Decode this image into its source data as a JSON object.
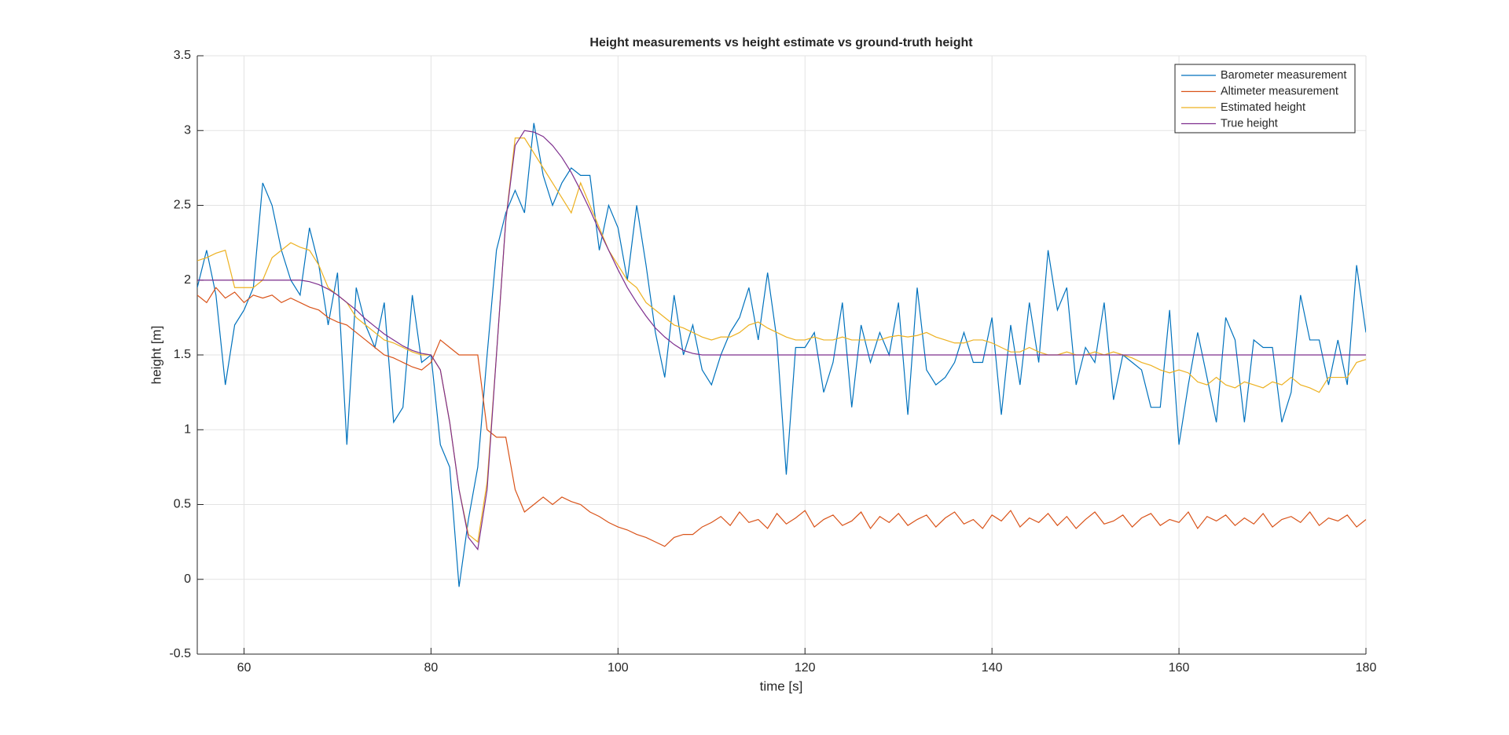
{
  "chart_data": {
    "type": "line",
    "title": "Height measurements vs height estimate vs ground-truth height",
    "xlabel": "time [s]",
    "ylabel": "height [m]",
    "xlim": [
      55,
      180
    ],
    "xticks": [
      60,
      80,
      100,
      120,
      140,
      160,
      180
    ],
    "ylim": [
      -0.5,
      3.5
    ],
    "yticks": [
      -0.5,
      0,
      0.5,
      1,
      1.5,
      2,
      2.5,
      3,
      3.5
    ],
    "grid": true,
    "legend": "northeast",
    "x": [
      55,
      56,
      57,
      58,
      59,
      60,
      61,
      62,
      63,
      64,
      65,
      66,
      67,
      68,
      69,
      70,
      71,
      72,
      73,
      74,
      75,
      76,
      77,
      78,
      79,
      80,
      81,
      82,
      83,
      84,
      85,
      86,
      87,
      88,
      89,
      90,
      91,
      92,
      93,
      94,
      95,
      96,
      97,
      98,
      99,
      100,
      101,
      102,
      103,
      104,
      105,
      106,
      107,
      108,
      109,
      110,
      111,
      112,
      113,
      114,
      115,
      116,
      117,
      118,
      119,
      120,
      121,
      122,
      123,
      124,
      125,
      126,
      127,
      128,
      129,
      130,
      131,
      132,
      133,
      134,
      135,
      136,
      137,
      138,
      139,
      140,
      141,
      142,
      143,
      144,
      145,
      146,
      147,
      148,
      149,
      150,
      151,
      152,
      153,
      154,
      155,
      156,
      157,
      158,
      159,
      160,
      161,
      162,
      163,
      164,
      165,
      166,
      167,
      168,
      169,
      170,
      171,
      172,
      173,
      174,
      175,
      176,
      177,
      178,
      179,
      180
    ],
    "series": [
      {
        "name": "Barometer measurement",
        "color": "#0072BD",
        "values": [
          1.95,
          2.2,
          1.9,
          1.3,
          1.7,
          1.8,
          1.95,
          2.65,
          2.5,
          2.2,
          2.0,
          1.9,
          2.35,
          2.1,
          1.7,
          2.05,
          0.9,
          1.95,
          1.7,
          1.55,
          1.85,
          1.05,
          1.15,
          1.9,
          1.45,
          1.5,
          0.9,
          0.75,
          -0.05,
          0.4,
          0.75,
          1.5,
          2.2,
          2.45,
          2.6,
          2.45,
          3.05,
          2.7,
          2.5,
          2.65,
          2.75,
          2.7,
          2.7,
          2.2,
          2.5,
          2.35,
          2.0,
          2.5,
          2.1,
          1.65,
          1.35,
          1.9,
          1.5,
          1.7,
          1.4,
          1.3,
          1.5,
          1.65,
          1.75,
          1.95,
          1.6,
          2.05,
          1.6,
          0.7,
          1.55,
          1.55,
          1.65,
          1.25,
          1.45,
          1.85,
          1.15,
          1.7,
          1.45,
          1.65,
          1.5,
          1.85,
          1.1,
          1.95,
          1.4,
          1.3,
          1.35,
          1.45,
          1.65,
          1.45,
          1.45,
          1.75,
          1.1,
          1.7,
          1.3,
          1.85,
          1.45,
          2.2,
          1.8,
          1.95,
          1.3,
          1.55,
          1.45,
          1.85,
          1.2,
          1.5,
          1.45,
          1.4,
          1.15,
          1.15,
          1.8,
          0.9,
          1.3,
          1.65,
          1.35,
          1.05,
          1.75,
          1.6,
          1.05,
          1.6,
          1.55,
          1.55,
          1.05,
          1.25,
          1.9,
          1.6,
          1.6,
          1.3,
          1.6,
          1.3,
          2.1,
          1.65
        ]
      },
      {
        "name": "Altimeter measurement",
        "color": "#D95319",
        "values": [
          1.9,
          1.85,
          1.95,
          1.88,
          1.92,
          1.85,
          1.9,
          1.88,
          1.9,
          1.85,
          1.88,
          1.85,
          1.82,
          1.8,
          1.75,
          1.72,
          1.7,
          1.65,
          1.6,
          1.55,
          1.5,
          1.48,
          1.45,
          1.42,
          1.4,
          1.45,
          1.6,
          1.55,
          1.5,
          1.5,
          1.5,
          1.0,
          0.95,
          0.95,
          0.6,
          0.45,
          0.5,
          0.55,
          0.5,
          0.55,
          0.52,
          0.5,
          0.45,
          0.42,
          0.38,
          0.35,
          0.33,
          0.3,
          0.28,
          0.25,
          0.22,
          0.28,
          0.3,
          0.3,
          0.35,
          0.38,
          0.42,
          0.36,
          0.45,
          0.38,
          0.4,
          0.34,
          0.44,
          0.37,
          0.41,
          0.46,
          0.35,
          0.4,
          0.43,
          0.36,
          0.39,
          0.45,
          0.34,
          0.42,
          0.38,
          0.44,
          0.36,
          0.4,
          0.43,
          0.35,
          0.41,
          0.45,
          0.37,
          0.4,
          0.34,
          0.43,
          0.39,
          0.46,
          0.35,
          0.41,
          0.38,
          0.44,
          0.36,
          0.42,
          0.34,
          0.4,
          0.45,
          0.37,
          0.39,
          0.43,
          0.35,
          0.41,
          0.44,
          0.36,
          0.4,
          0.38,
          0.45,
          0.34,
          0.42,
          0.39,
          0.43,
          0.36,
          0.41,
          0.37,
          0.44,
          0.35,
          0.4,
          0.42,
          0.38,
          0.45,
          0.36,
          0.41,
          0.39,
          0.43,
          0.35,
          0.4
        ]
      },
      {
        "name": "Estimated height",
        "color": "#EDB120",
        "values": [
          2.13,
          2.15,
          2.18,
          2.2,
          1.95,
          1.95,
          1.95,
          2.0,
          2.15,
          2.2,
          2.25,
          2.22,
          2.2,
          2.1,
          1.95,
          1.9,
          1.85,
          1.75,
          1.7,
          1.65,
          1.6,
          1.58,
          1.55,
          1.52,
          1.5,
          1.5,
          1.4,
          1.05,
          0.6,
          0.3,
          0.25,
          0.65,
          1.5,
          2.4,
          2.95,
          2.95,
          2.85,
          2.75,
          2.65,
          2.55,
          2.45,
          2.65,
          2.5,
          2.35,
          2.2,
          2.1,
          2.0,
          1.95,
          1.85,
          1.8,
          1.75,
          1.7,
          1.68,
          1.65,
          1.62,
          1.6,
          1.62,
          1.62,
          1.65,
          1.7,
          1.72,
          1.68,
          1.65,
          1.62,
          1.6,
          1.6,
          1.62,
          1.6,
          1.6,
          1.62,
          1.6,
          1.6,
          1.6,
          1.6,
          1.62,
          1.63,
          1.62,
          1.63,
          1.65,
          1.62,
          1.6,
          1.58,
          1.58,
          1.6,
          1.6,
          1.58,
          1.55,
          1.52,
          1.52,
          1.55,
          1.52,
          1.5,
          1.5,
          1.52,
          1.5,
          1.5,
          1.52,
          1.5,
          1.52,
          1.5,
          1.48,
          1.45,
          1.43,
          1.4,
          1.38,
          1.4,
          1.38,
          1.32,
          1.3,
          1.35,
          1.3,
          1.28,
          1.32,
          1.3,
          1.28,
          1.32,
          1.3,
          1.35,
          1.3,
          1.28,
          1.25,
          1.35,
          1.35,
          1.35,
          1.45,
          1.47
        ]
      },
      {
        "name": "True height",
        "color": "#7E2F8E",
        "values": [
          2,
          2,
          2,
          2,
          2,
          2,
          2,
          2,
          2,
          2,
          2,
          2,
          1.99,
          1.97,
          1.94,
          1.9,
          1.85,
          1.8,
          1.74,
          1.69,
          1.64,
          1.6,
          1.56,
          1.53,
          1.51,
          1.5,
          1.4,
          1.05,
          0.6,
          0.28,
          0.2,
          0.6,
          1.5,
          2.4,
          2.9,
          3.0,
          2.99,
          2.96,
          2.9,
          2.82,
          2.72,
          2.6,
          2.47,
          2.33,
          2.2,
          2.07,
          1.95,
          1.85,
          1.76,
          1.68,
          1.62,
          1.57,
          1.53,
          1.51,
          1.5,
          1.5,
          1.5,
          1.5,
          1.5,
          1.5,
          1.5,
          1.5,
          1.5,
          1.5,
          1.5,
          1.5,
          1.5,
          1.5,
          1.5,
          1.5,
          1.5,
          1.5,
          1.5,
          1.5,
          1.5,
          1.5,
          1.5,
          1.5,
          1.5,
          1.5,
          1.5,
          1.5,
          1.5,
          1.5,
          1.5,
          1.5,
          1.5,
          1.5,
          1.5,
          1.5,
          1.5,
          1.5,
          1.5,
          1.5,
          1.5,
          1.5,
          1.5,
          1.5,
          1.5,
          1.5,
          1.5,
          1.5,
          1.5,
          1.5,
          1.5,
          1.5,
          1.5,
          1.5,
          1.5,
          1.5,
          1.5,
          1.5,
          1.5,
          1.5,
          1.5,
          1.5,
          1.5,
          1.5,
          1.5,
          1.5,
          1.5,
          1.5,
          1.5,
          1.5,
          1.5,
          1.5
        ]
      }
    ]
  }
}
